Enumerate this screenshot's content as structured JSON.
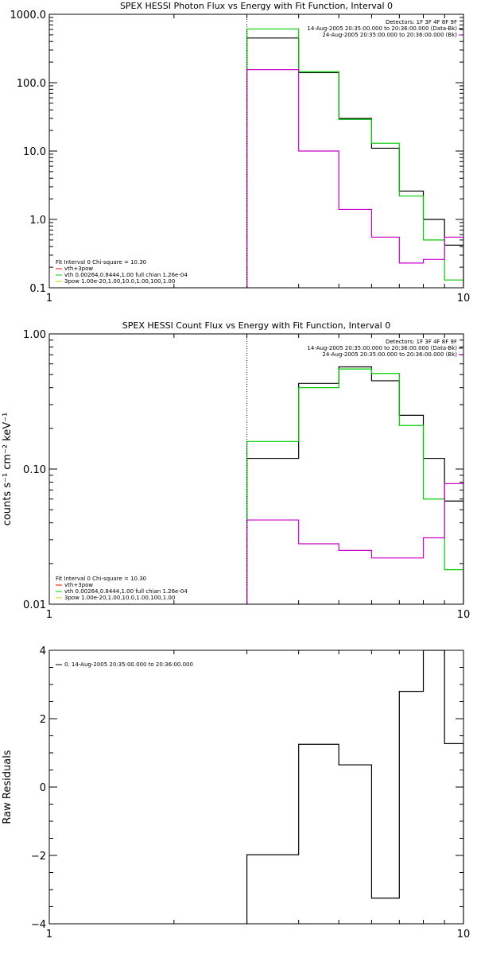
{
  "chart_data": [
    {
      "type": "line",
      "title": "SPEX HESSI Photon Flux vs Energy with Fit Function, Interval 0",
      "xlabel": "",
      "ylabel": "",
      "xscale": "log",
      "yscale": "log",
      "xlim": [
        1,
        10
      ],
      "ylim": [
        0.1,
        1000
      ],
      "x_ticks": [
        "1",
        "10"
      ],
      "y_ticks": [
        "1000.0",
        "100.0",
        "10.0",
        "1.0",
        "0.1"
      ],
      "y_tick_values": [
        1000,
        100,
        10,
        1,
        0.1
      ],
      "vline_x": 3.0,
      "legend_right": [
        "Detectors: 1F 3F 4F 8F 9F",
        "14-Aug-2005 20:35:00.000 to 20:36:00.000 (Data-Bk)",
        "24-Aug-2005 20:35:00.000 to 20:36:00.000 (Bk)"
      ],
      "legend_left": {
        "heading": "Fit Interval 0   Chi-square = 10.30",
        "items": [
          {
            "label": "vth+3pow",
            "color": "#ff0000"
          },
          {
            "label": "vth 0.00264,0.8444,1.00   full chian 1.26e-04",
            "color": "#00cc00"
          },
          {
            "label": "3pow 1.00e-20,1.00,10.0,1.00,100,1.00",
            "color": "#cccc00"
          }
        ]
      },
      "series": [
        {
          "color": "#000000",
          "edges": [
            3,
            4,
            5,
            6,
            7,
            8,
            9,
            10
          ],
          "values": [
            450,
            140,
            30,
            11,
            2.6,
            1.0,
            0.42
          ]
        },
        {
          "color": "#00cc00",
          "edges": [
            3,
            4,
            5,
            6,
            7,
            8,
            9,
            10
          ],
          "values": [
            610,
            145,
            29,
            13,
            2.2,
            0.5,
            0.13
          ]
        },
        {
          "color": "#cc00cc",
          "edges": [
            3,
            4,
            5,
            6,
            7,
            8,
            9,
            10
          ],
          "values": [
            155,
            10,
            1.4,
            0.55,
            0.23,
            0.26,
            0.55
          ]
        }
      ]
    },
    {
      "type": "line",
      "title": "SPEX HESSI Count Flux vs Energy with Fit Function, Interval 0",
      "xlabel": "",
      "ylabel": "counts s⁻¹ cm⁻² keV⁻¹",
      "xscale": "log",
      "yscale": "log",
      "xlim": [
        1,
        10
      ],
      "ylim": [
        0.01,
        1.0
      ],
      "x_ticks": [
        "1",
        "10"
      ],
      "y_ticks": [
        "1.00",
        "0.10",
        "0.01"
      ],
      "y_tick_values": [
        1,
        0.1,
        0.01
      ],
      "vline_x": 3.0,
      "legend_right": [
        "Detectors: 1F 3F 4F 8F 9F",
        "14-Aug-2005 20:35:00.000 to 20:36:00.000 (Data-Bk)",
        "24-Aug-2005 20:35:00.000 to 20:36:00.000 (Bk)"
      ],
      "legend_left": {
        "heading": "Fit Interval 0   Chi-square = 10.30",
        "items": [
          {
            "label": "vth+3pow",
            "color": "#ff0000"
          },
          {
            "label": "vth 0.00264,0.8444,1.00   full chian 1.26e-04",
            "color": "#00cc00"
          },
          {
            "label": "3pow 1.00e-20,1.00,10.0,1.00,100,1.00",
            "color": "#cccc00"
          }
        ]
      },
      "series": [
        {
          "color": "#000000",
          "edges": [
            3,
            4,
            5,
            6,
            7,
            8,
            9,
            10
          ],
          "values": [
            0.12,
            0.43,
            0.57,
            0.45,
            0.25,
            0.12,
            0.058
          ]
        },
        {
          "color": "#00cc00",
          "edges": [
            3,
            4,
            5,
            6,
            7,
            8,
            9,
            10
          ],
          "values": [
            0.16,
            0.4,
            0.55,
            0.51,
            0.21,
            0.06,
            0.018
          ]
        },
        {
          "color": "#cc00cc",
          "edges": [
            3,
            4,
            5,
            6,
            7,
            8,
            9,
            10
          ],
          "values": [
            0.042,
            0.028,
            0.025,
            0.022,
            0.022,
            0.031,
            0.078
          ]
        }
      ]
    },
    {
      "type": "line",
      "title": "",
      "xlabel": "",
      "ylabel": "Raw Residuals",
      "xscale": "log",
      "yscale": "linear",
      "xlim": [
        1,
        10
      ],
      "ylim": [
        -4,
        4
      ],
      "x_ticks": [
        "1",
        "10"
      ],
      "y_ticks": [
        "4",
        "2",
        "0",
        "−2",
        "−4"
      ],
      "y_tick_values": [
        4,
        2,
        0,
        -2,
        -4
      ],
      "legend_left": {
        "heading": "",
        "items": [
          {
            "label": "0. 14-Aug-2005 20:35:00.000 to 20:36:00.000",
            "color": "#000000"
          }
        ]
      },
      "series": [
        {
          "color": "#000000",
          "edges": [
            3,
            4,
            5,
            6,
            7,
            8,
            9,
            10
          ],
          "values": [
            -1.98,
            1.25,
            0.65,
            -3.25,
            2.8,
            4.0,
            1.27
          ]
        }
      ]
    }
  ]
}
